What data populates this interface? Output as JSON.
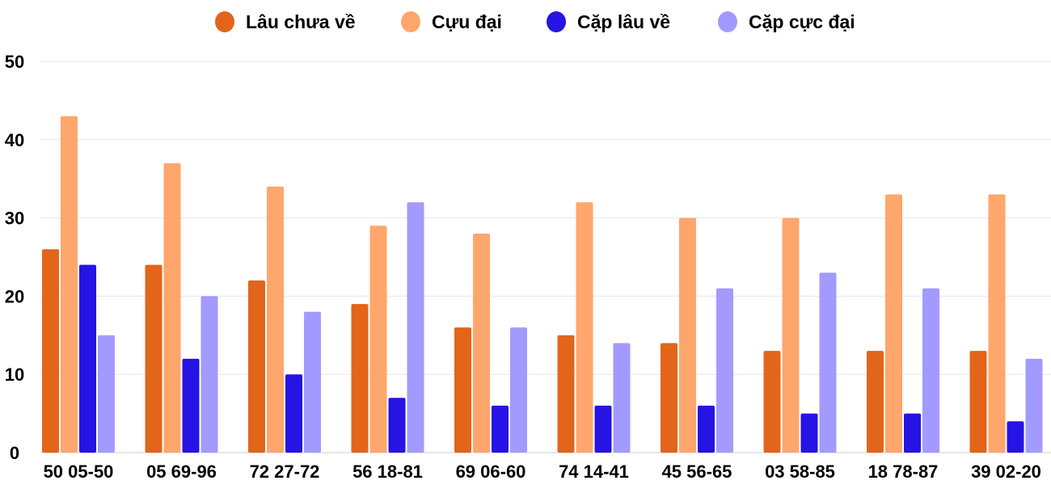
{
  "chart_data": {
    "type": "bar",
    "categories": [
      "50 05-50",
      "05 69-96",
      "72 27-72",
      "56 18-81",
      "69 06-60",
      "74 14-41",
      "45 56-65",
      "03 58-85",
      "18 78-87",
      "39 02-20"
    ],
    "series": [
      {
        "name": "Lâu chưa về",
        "color": "#e2651a",
        "values": [
          26,
          24,
          22,
          19,
          16,
          15,
          14,
          13,
          13,
          13
        ]
      },
      {
        "name": "Cựu đại",
        "color": "#ffa66c",
        "values": [
          43,
          37,
          34,
          29,
          28,
          32,
          30,
          30,
          33,
          33
        ]
      },
      {
        "name": "Cặp lâu về",
        "color": "#2614e4",
        "values": [
          24,
          12,
          10,
          7,
          6,
          6,
          6,
          5,
          5,
          4
        ]
      },
      {
        "name": "Cặp cực đại",
        "color": "#a39aff",
        "values": [
          15,
          20,
          18,
          32,
          16,
          14,
          21,
          23,
          21,
          12
        ]
      }
    ],
    "ylim": [
      0,
      50
    ],
    "yticks": [
      "0",
      "10",
      "20",
      "30",
      "40",
      "50"
    ],
    "grid": true,
    "legend": "top"
  }
}
